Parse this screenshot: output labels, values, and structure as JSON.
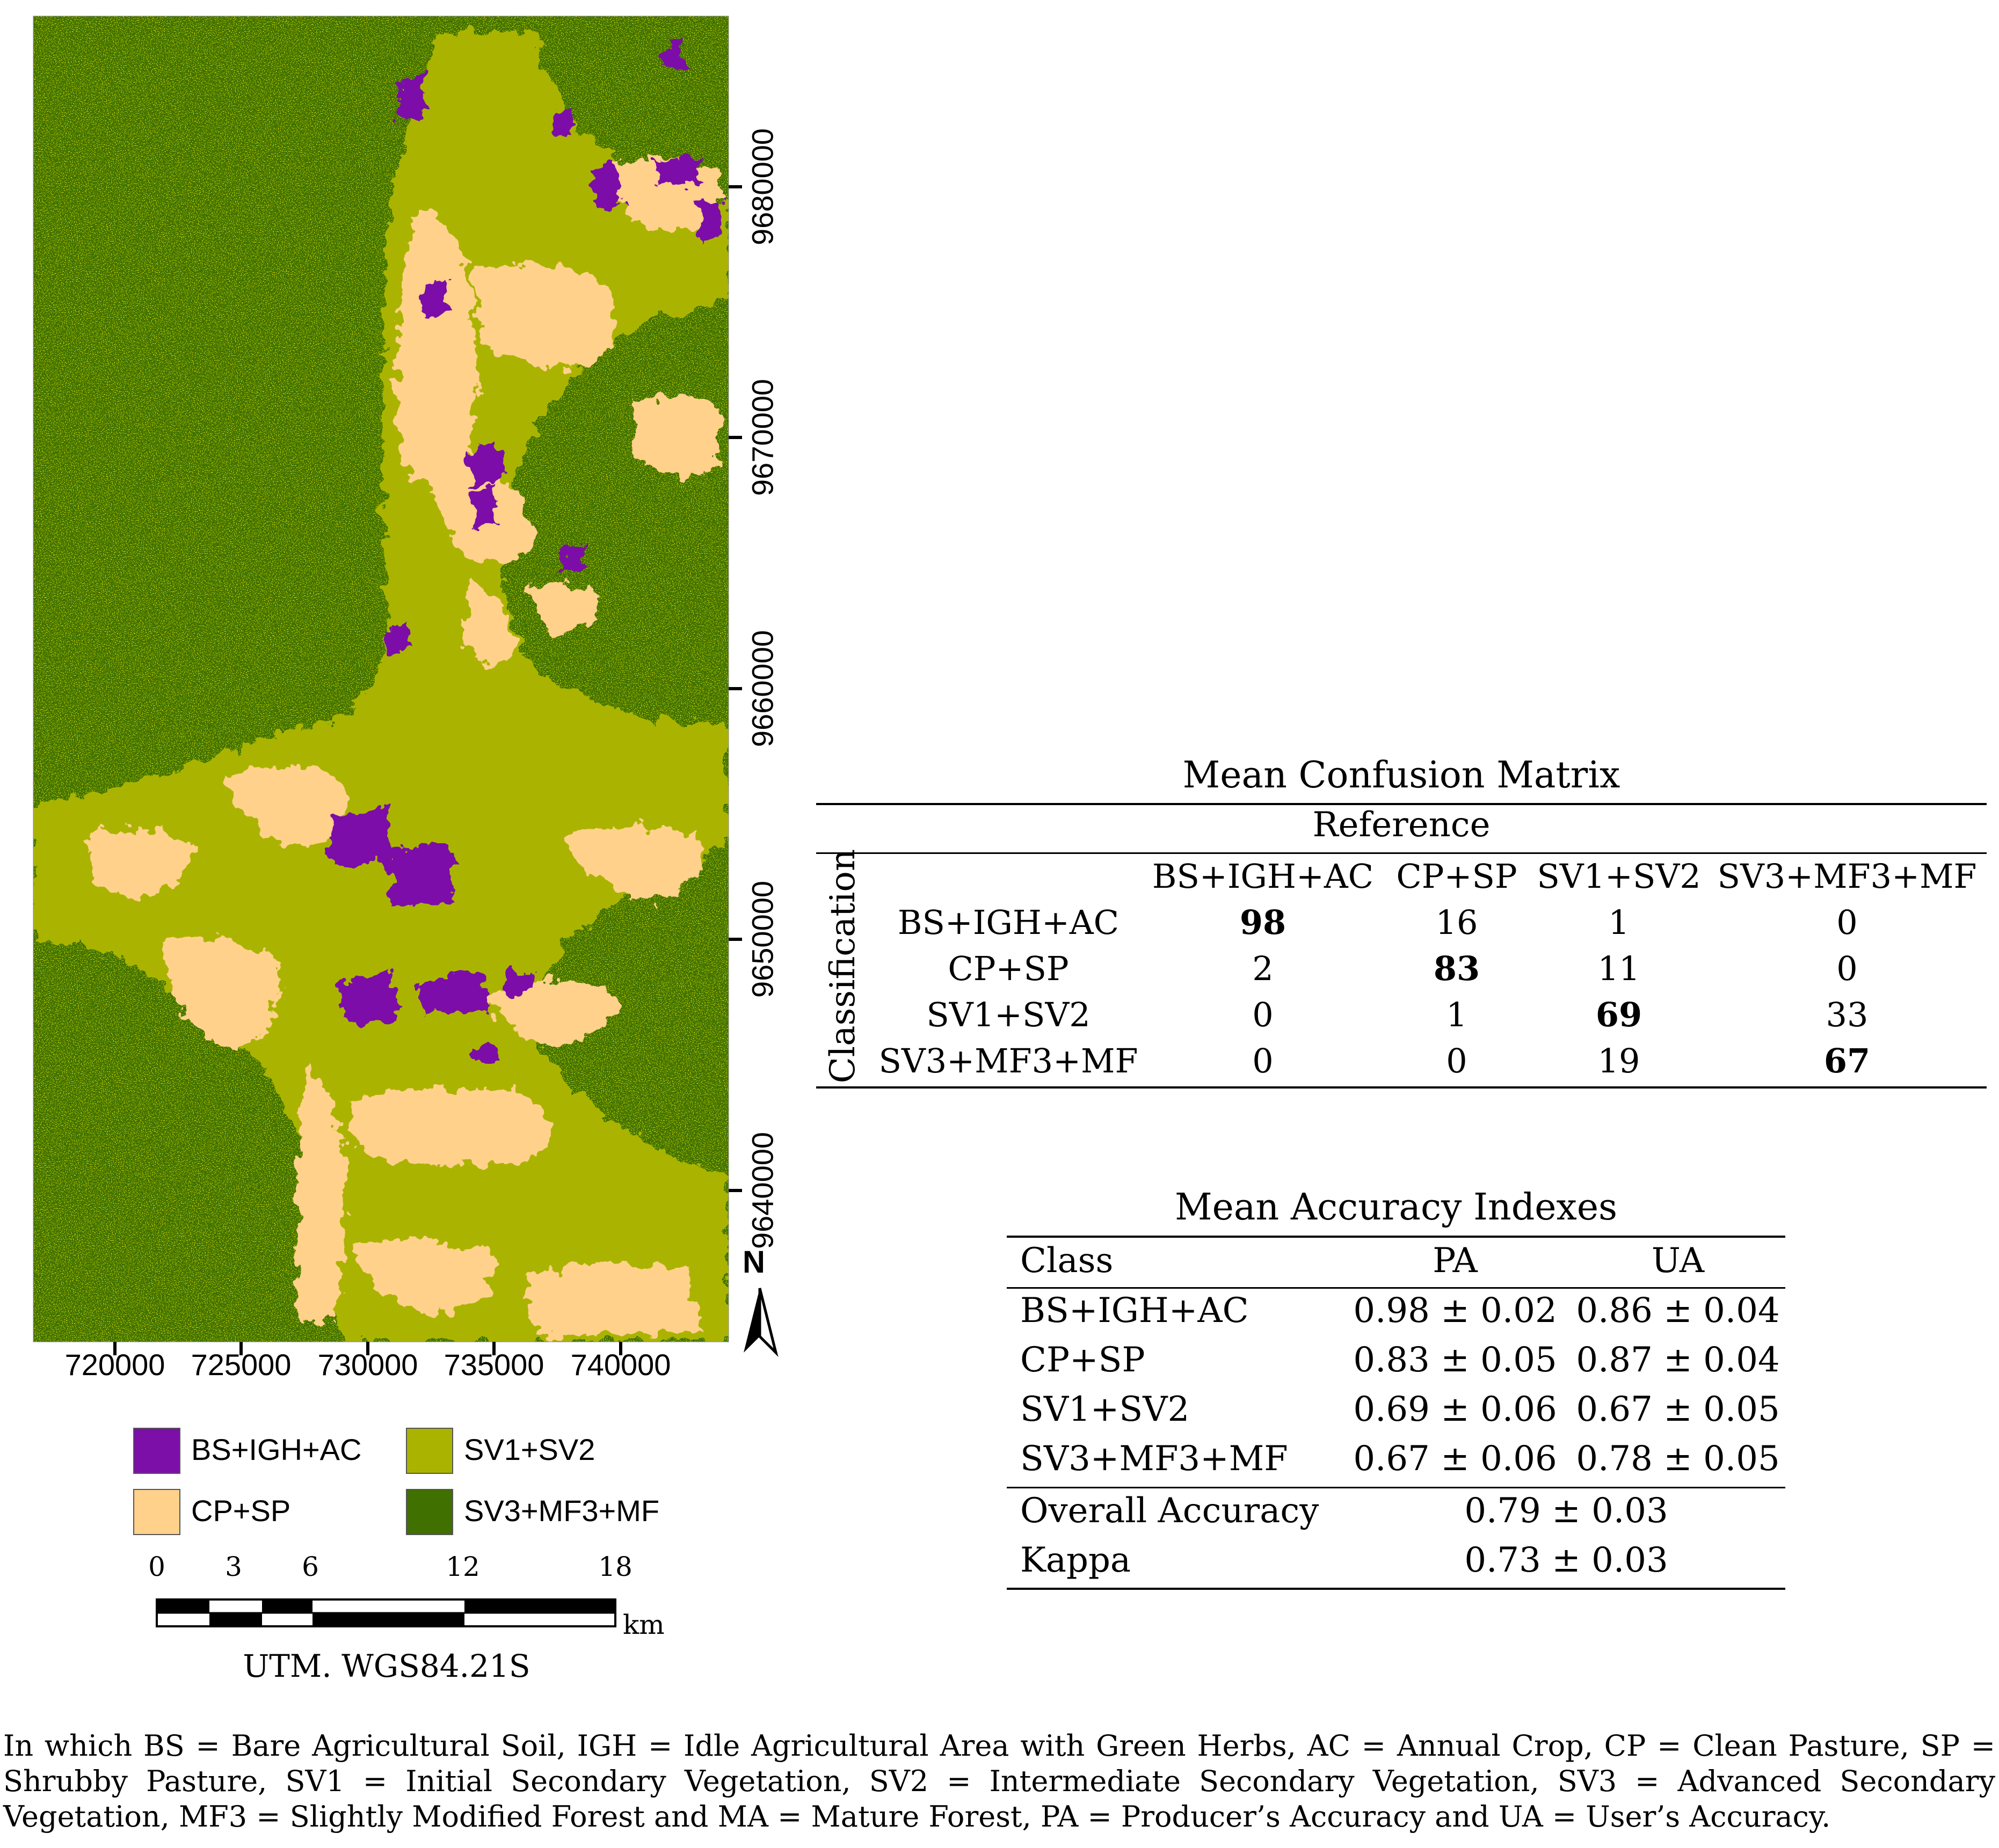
{
  "map": {
    "x_ticks": [
      "720000",
      "725000",
      "730000",
      "735000",
      "740000"
    ],
    "y_ticks": [
      "9680000",
      "9670000",
      "9660000",
      "9650000",
      "9640000"
    ],
    "north_label": "N",
    "legend": [
      {
        "label": "BS+IGH+AC",
        "color": "#7b0fa8"
      },
      {
        "label": "SV1+SV2",
        "color": "#aab400"
      },
      {
        "label": "CP+SP",
        "color": "#ffd18a"
      },
      {
        "label": "SV3+MF3+MF",
        "color": "#3f7000"
      }
    ],
    "scale_bar": {
      "ticks": [
        "0",
        "3",
        "6",
        "12",
        "18"
      ],
      "unit": "km"
    },
    "projection": "UTM. WGS84.21S",
    "colors": {
      "forest": "#3f7000",
      "secondary": "#aab400",
      "pasture": "#ffd18a",
      "soil": "#7b0fa8"
    }
  },
  "confusion_matrix": {
    "title": "Mean Confusion Matrix",
    "reference_label": "Reference",
    "classification_label": "Classification",
    "columns": [
      "BS+IGH+AC",
      "CP+SP",
      "SV1+SV2",
      "SV3+MF3+MF"
    ],
    "rows": [
      {
        "label": "BS+IGH+AC",
        "values": [
          "98",
          "16",
          "1",
          "0"
        ]
      },
      {
        "label": "CP+SP",
        "values": [
          "2",
          "83",
          "11",
          "0"
        ]
      },
      {
        "label": "SV1+SV2",
        "values": [
          "0",
          "1",
          "69",
          "33"
        ]
      },
      {
        "label": "SV3+MF3+MF",
        "values": [
          "0",
          "0",
          "19",
          "67"
        ]
      }
    ]
  },
  "accuracy": {
    "title": "Mean Accuracy Indexes",
    "headers": [
      "Class",
      "PA",
      "UA"
    ],
    "rows": [
      {
        "class": "BS+IGH+AC",
        "pa": "0.98 ± 0.02",
        "ua": "0.86 ± 0.04"
      },
      {
        "class": "CP+SP",
        "pa": "0.83 ± 0.05",
        "ua": "0.87 ± 0.04"
      },
      {
        "class": "SV1+SV2",
        "pa": "0.69 ± 0.06",
        "ua": "0.67 ± 0.05"
      },
      {
        "class": "SV3+MF3+MF",
        "pa": "0.67 ± 0.06",
        "ua": "0.78 ± 0.05"
      }
    ],
    "overall_label": "Overall Accuracy",
    "overall_value": "0.79 ± 0.03",
    "kappa_label": "Kappa",
    "kappa_value": "0.73 ± 0.03"
  },
  "footnote": "In which BS = Bare Agricultural Soil, IGH = Idle Agricultural Area with Green Herbs, AC = Annual Crop, CP = Clean Pasture, SP = Shrubby Pasture, SV1 = Initial Secondary Vegetation, SV2 = Intermediate Secondary Vegetation, SV3 = Advanced Secondary Vegetation, MF3 = Slightly Modified Forest and MA = Mature Forest, PA = Producer’s Accuracy and UA = User’s Accuracy."
}
